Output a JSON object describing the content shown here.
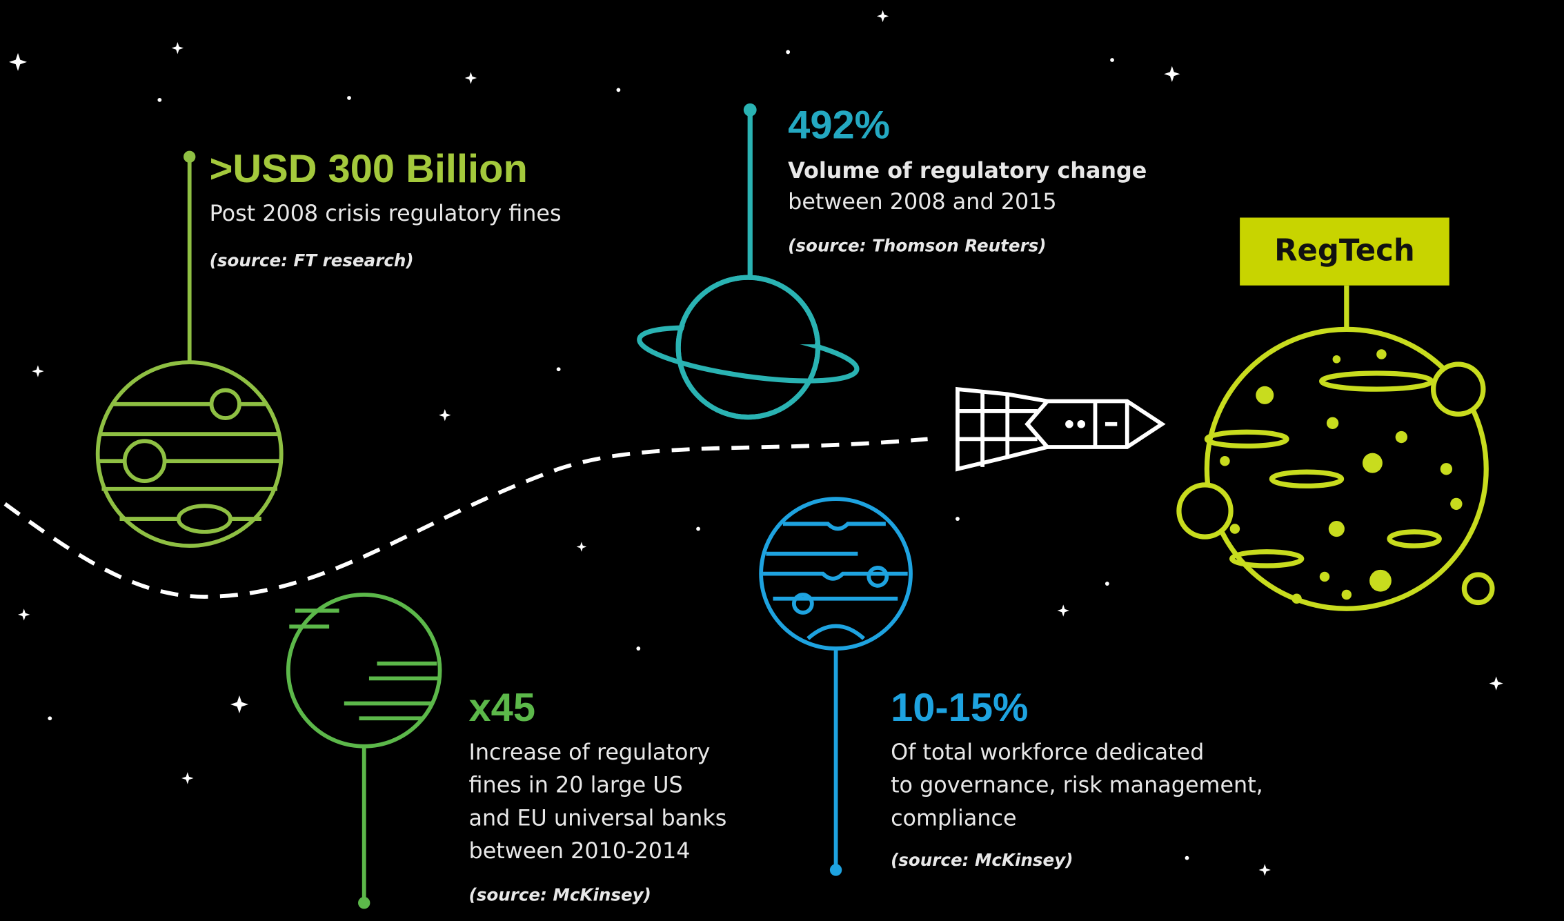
{
  "stats": [
    {
      "headline": ">USD 300 Billion",
      "description": [
        "Post 2008 crisis regulatory fines"
      ],
      "source": "(source: FT research)"
    },
    {
      "headline": "492%",
      "description": [
        "Volume of regulatory change",
        "between 2008 and 2015"
      ],
      "source": "(source: Thomson Reuters)"
    },
    {
      "headline": "x45",
      "description": [
        "Increase of regulatory",
        "fines in 20 large US",
        "and EU universal banks",
        "between 2010-2014"
      ],
      "source": "(source: McKinsey)"
    },
    {
      "headline": "10-15%",
      "description": [
        "Of total workforce dedicated",
        "to governance, risk management,",
        "compliance"
      ],
      "source": "(source: McKinsey)"
    }
  ],
  "badge": "RegTech"
}
